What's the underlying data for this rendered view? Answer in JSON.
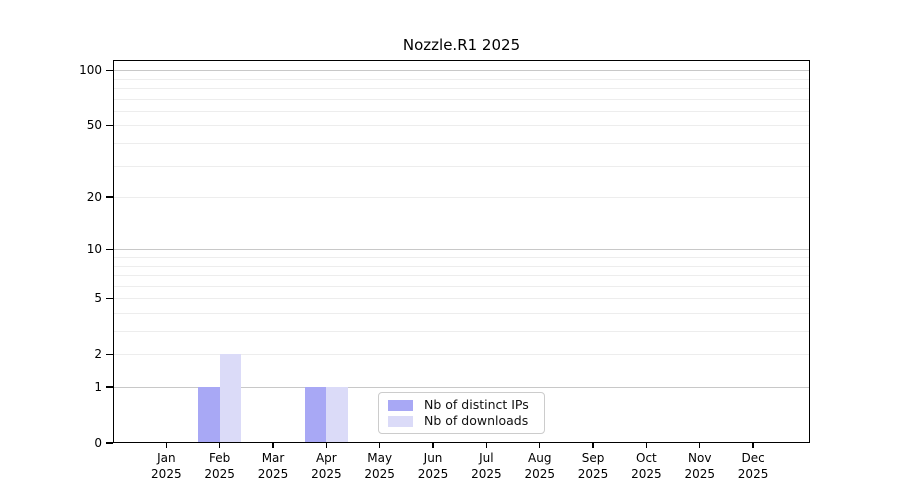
{
  "figure": {
    "background_color": "#ffffff"
  },
  "chart_data": {
    "type": "bar",
    "title": "Nozzle.R1 2025",
    "x_tick_months": [
      "Jan",
      "Feb",
      "Mar",
      "Apr",
      "May",
      "Jun",
      "Jul",
      "Aug",
      "Sep",
      "Oct",
      "Nov",
      "Dec"
    ],
    "x_tick_year": "2025",
    "categories": [
      "Jan 2025",
      "Feb 2025",
      "Mar 2025",
      "Apr 2025",
      "May 2025",
      "Jun 2025",
      "Jul 2025",
      "Aug 2025",
      "Sep 2025",
      "Oct 2025",
      "Nov 2025",
      "Dec 2025"
    ],
    "series": [
      {
        "name": "Nb of distinct IPs",
        "color": "#a8a8f5",
        "values": [
          0,
          1,
          0,
          1,
          0,
          0,
          0,
          0,
          0,
          0,
          0,
          0
        ]
      },
      {
        "name": "Nb of downloads",
        "color": "#dbdbf8",
        "values": [
          0,
          2,
          0,
          1,
          0,
          0,
          0,
          0,
          0,
          0,
          0,
          0
        ]
      }
    ],
    "y_axis": {
      "scale": "log10(1+x)",
      "tick_values": [
        0,
        1,
        2,
        5,
        10,
        20,
        50,
        100
      ],
      "major_gridline_values": [
        1,
        10,
        100
      ],
      "minor_gridline_values": [
        2,
        3,
        4,
        5,
        6,
        7,
        8,
        9,
        20,
        30,
        40,
        50,
        60,
        70,
        80,
        90
      ],
      "ylim": [
        0,
        113.6
      ]
    },
    "grid": "horizontal",
    "legend": {
      "position": "inside-bottom-center",
      "entries": [
        "Nb of distinct IPs",
        "Nb of downloads"
      ]
    },
    "style": {
      "grid_major_color": "#c8c8c8",
      "grid_minor_color": "#ededed",
      "axis_color": "#000000"
    }
  }
}
